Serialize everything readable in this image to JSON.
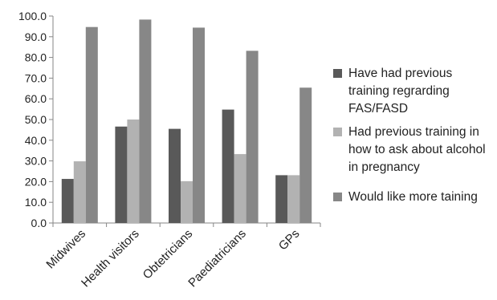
{
  "chart_data": {
    "type": "bar",
    "title": "",
    "xlabel": "",
    "ylabel": "",
    "ylim": [
      0,
      100
    ],
    "yticks": [
      "0.0",
      "10.0",
      "20.0",
      "30.0",
      "40.0",
      "50.0",
      "60.0",
      "70.0",
      "80.0",
      "90.0",
      "100.0"
    ],
    "categories": [
      "Midwives",
      "Health visitors",
      "Obtetricians",
      "Paediatricians",
      "GPs"
    ],
    "series": [
      {
        "name": "Have had previous training regrarding FAS/FASD",
        "legend_lines": [
          "Have had previous",
          "training regrarding",
          "FAS/FASD"
        ],
        "color": "#595959",
        "values": [
          21.3,
          46.6,
          45.5,
          54.8,
          23.1
        ]
      },
      {
        "name": "Had previous training in how to ask about alcohol in pregnancy",
        "legend_lines": [
          "Had previous training in",
          "how to ask about alcohol",
          "in pregnancy"
        ],
        "color": "#b2b2b2",
        "values": [
          29.8,
          50.0,
          20.2,
          33.3,
          23.1
        ]
      },
      {
        "name": "Would like more taining",
        "legend_lines": [
          "Would like more taining"
        ],
        "color": "#878787",
        "values": [
          94.7,
          98.3,
          94.4,
          83.2,
          65.4
        ]
      }
    ],
    "grid": false,
    "legend": "right"
  }
}
